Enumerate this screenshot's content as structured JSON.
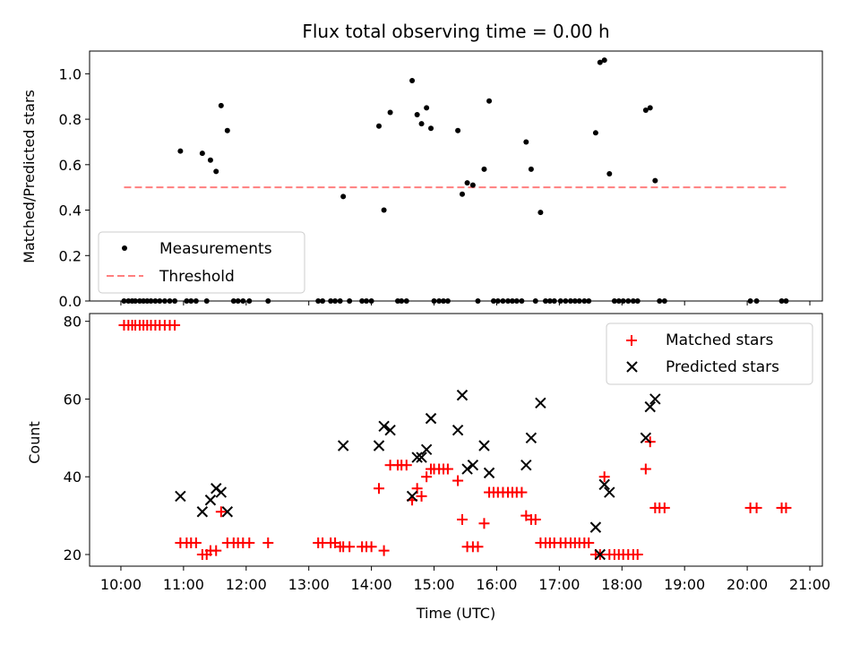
{
  "chart_data": [
    {
      "type": "scatter",
      "title": "Flux total observing time = 0.00 h",
      "xlabel": "",
      "ylabel": "Matched/Predicted stars",
      "ylim": [
        0,
        1.1
      ],
      "xlim": [
        9.5,
        21.2
      ],
      "yticks": [
        "0.0",
        "0.2",
        "0.4",
        "0.6",
        "0.8",
        "1.0"
      ],
      "legend_position": "lower-left",
      "series": [
        {
          "name": "Measurements",
          "color": "#000000",
          "marker": "dot",
          "points": [
            [
              10.05,
              0
            ],
            [
              10.12,
              0
            ],
            [
              10.18,
              0
            ],
            [
              10.23,
              0
            ],
            [
              10.3,
              0
            ],
            [
              10.36,
              0
            ],
            [
              10.42,
              0
            ],
            [
              10.48,
              0
            ],
            [
              10.55,
              0
            ],
            [
              10.62,
              0
            ],
            [
              10.7,
              0
            ],
            [
              10.78,
              0
            ],
            [
              10.86,
              0
            ],
            [
              10.95,
              0.66
            ],
            [
              11.05,
              0
            ],
            [
              11.12,
              0
            ],
            [
              11.2,
              0
            ],
            [
              11.3,
              0.65
            ],
            [
              11.37,
              0
            ],
            [
              11.43,
              0.62
            ],
            [
              11.52,
              0.57
            ],
            [
              11.6,
              0.86
            ],
            [
              11.7,
              0.75
            ],
            [
              11.8,
              0
            ],
            [
              11.87,
              0
            ],
            [
              11.95,
              0
            ],
            [
              12.05,
              0
            ],
            [
              12.35,
              0
            ],
            [
              13.15,
              0
            ],
            [
              13.22,
              0
            ],
            [
              13.35,
              0
            ],
            [
              13.42,
              0
            ],
            [
              13.5,
              0
            ],
            [
              13.55,
              0.46
            ],
            [
              13.65,
              0
            ],
            [
              13.85,
              0
            ],
            [
              13.92,
              0
            ],
            [
              14.0,
              0
            ],
            [
              14.12,
              0.77
            ],
            [
              14.2,
              0.4
            ],
            [
              14.3,
              0.83
            ],
            [
              14.42,
              0
            ],
            [
              14.48,
              0
            ],
            [
              14.56,
              0
            ],
            [
              14.65,
              0.97
            ],
            [
              14.73,
              0.82
            ],
            [
              14.8,
              0.78
            ],
            [
              14.88,
              0.85
            ],
            [
              14.95,
              0.76
            ],
            [
              15.0,
              0
            ],
            [
              15.08,
              0
            ],
            [
              15.15,
              0
            ],
            [
              15.22,
              0
            ],
            [
              15.38,
              0.75
            ],
            [
              15.45,
              0.47
            ],
            [
              15.53,
              0.52
            ],
            [
              15.62,
              0.51
            ],
            [
              15.7,
              0
            ],
            [
              15.8,
              0.58
            ],
            [
              15.88,
              0.88
            ],
            [
              15.95,
              0
            ],
            [
              16.02,
              0
            ],
            [
              16.1,
              0
            ],
            [
              16.18,
              0
            ],
            [
              16.25,
              0
            ],
            [
              16.32,
              0
            ],
            [
              16.4,
              0
            ],
            [
              16.47,
              0.7
            ],
            [
              16.55,
              0.58
            ],
            [
              16.62,
              0
            ],
            [
              16.7,
              0.39
            ],
            [
              16.78,
              0
            ],
            [
              16.85,
              0
            ],
            [
              16.92,
              0
            ],
            [
              17.02,
              0
            ],
            [
              17.1,
              0
            ],
            [
              17.18,
              0
            ],
            [
              17.25,
              0
            ],
            [
              17.32,
              0
            ],
            [
              17.4,
              0
            ],
            [
              17.47,
              0
            ],
            [
              17.58,
              0.74
            ],
            [
              17.65,
              1.05
            ],
            [
              17.72,
              1.06
            ],
            [
              17.8,
              0.56
            ],
            [
              17.88,
              0
            ],
            [
              17.95,
              0
            ],
            [
              18.02,
              0
            ],
            [
              18.1,
              0
            ],
            [
              18.18,
              0
            ],
            [
              18.25,
              0
            ],
            [
              18.38,
              0.84
            ],
            [
              18.45,
              0.85
            ],
            [
              18.53,
              0.53
            ],
            [
              18.6,
              0
            ],
            [
              18.68,
              0
            ],
            [
              20.05,
              0
            ],
            [
              20.15,
              0
            ],
            [
              20.55,
              0
            ],
            [
              20.62,
              0
            ]
          ]
        },
        {
          "name": "Threshold",
          "color": "#ff7f7f",
          "marker": "dashed-line",
          "points": [
            [
              10.05,
              0.5
            ],
            [
              20.62,
              0.5
            ]
          ]
        }
      ]
    },
    {
      "type": "scatter",
      "title": "",
      "xlabel": "Time (UTC)",
      "ylabel": "Count",
      "ylim": [
        17,
        82
      ],
      "xlim": [
        9.5,
        21.2
      ],
      "yticks": [
        "20",
        "40",
        "60",
        "80"
      ],
      "xticks": [
        "10:00",
        "11:00",
        "12:00",
        "13:00",
        "14:00",
        "15:00",
        "16:00",
        "17:00",
        "18:00",
        "19:00",
        "20:00",
        "21:00"
      ],
      "legend_position": "upper-right",
      "series": [
        {
          "name": "Matched stars",
          "color": "#ff0000",
          "marker": "plus",
          "points": [
            [
              10.05,
              79
            ],
            [
              10.12,
              79
            ],
            [
              10.18,
              79
            ],
            [
              10.23,
              79
            ],
            [
              10.3,
              79
            ],
            [
              10.36,
              79
            ],
            [
              10.42,
              79
            ],
            [
              10.48,
              79
            ],
            [
              10.55,
              79
            ],
            [
              10.62,
              79
            ],
            [
              10.7,
              79
            ],
            [
              10.78,
              79
            ],
            [
              10.86,
              79
            ],
            [
              10.95,
              23
            ],
            [
              11.05,
              23
            ],
            [
              11.12,
              23
            ],
            [
              11.2,
              23
            ],
            [
              11.3,
              20
            ],
            [
              11.37,
              20
            ],
            [
              11.43,
              21
            ],
            [
              11.52,
              21
            ],
            [
              11.6,
              31
            ],
            [
              11.7,
              23
            ],
            [
              11.8,
              23
            ],
            [
              11.87,
              23
            ],
            [
              11.95,
              23
            ],
            [
              12.05,
              23
            ],
            [
              12.35,
              23
            ],
            [
              13.15,
              23
            ],
            [
              13.22,
              23
            ],
            [
              13.35,
              23
            ],
            [
              13.42,
              23
            ],
            [
              13.5,
              22
            ],
            [
              13.55,
              22
            ],
            [
              13.65,
              22
            ],
            [
              13.85,
              22
            ],
            [
              13.92,
              22
            ],
            [
              14.0,
              22
            ],
            [
              14.12,
              37
            ],
            [
              14.2,
              21
            ],
            [
              14.3,
              43
            ],
            [
              14.42,
              43
            ],
            [
              14.48,
              43
            ],
            [
              14.56,
              43
            ],
            [
              14.65,
              34
            ],
            [
              14.73,
              37
            ],
            [
              14.8,
              35
            ],
            [
              14.88,
              40
            ],
            [
              14.95,
              42
            ],
            [
              15.0,
              42
            ],
            [
              15.08,
              42
            ],
            [
              15.15,
              42
            ],
            [
              15.22,
              42
            ],
            [
              15.38,
              39
            ],
            [
              15.45,
              29
            ],
            [
              15.53,
              22
            ],
            [
              15.62,
              22
            ],
            [
              15.7,
              22
            ],
            [
              15.8,
              28
            ],
            [
              15.88,
              36
            ],
            [
              15.95,
              36
            ],
            [
              16.02,
              36
            ],
            [
              16.1,
              36
            ],
            [
              16.18,
              36
            ],
            [
              16.25,
              36
            ],
            [
              16.32,
              36
            ],
            [
              16.4,
              36
            ],
            [
              16.47,
              30
            ],
            [
              16.55,
              29
            ],
            [
              16.62,
              29
            ],
            [
              16.7,
              23
            ],
            [
              16.78,
              23
            ],
            [
              16.85,
              23
            ],
            [
              16.92,
              23
            ],
            [
              17.02,
              23
            ],
            [
              17.1,
              23
            ],
            [
              17.18,
              23
            ],
            [
              17.25,
              23
            ],
            [
              17.32,
              23
            ],
            [
              17.4,
              23
            ],
            [
              17.47,
              23
            ],
            [
              17.58,
              20
            ],
            [
              17.65,
              20
            ],
            [
              17.72,
              40
            ],
            [
              17.8,
              20
            ],
            [
              17.88,
              20
            ],
            [
              17.95,
              20
            ],
            [
              18.02,
              20
            ],
            [
              18.1,
              20
            ],
            [
              18.18,
              20
            ],
            [
              18.25,
              20
            ],
            [
              18.38,
              42
            ],
            [
              18.45,
              49
            ],
            [
              18.53,
              32
            ],
            [
              18.6,
              32
            ],
            [
              18.68,
              32
            ],
            [
              20.05,
              32
            ],
            [
              20.15,
              32
            ],
            [
              20.55,
              32
            ],
            [
              20.62,
              32
            ]
          ]
        },
        {
          "name": "Predicted stars",
          "color": "#000000",
          "marker": "cross",
          "points": [
            [
              10.95,
              35
            ],
            [
              11.3,
              31
            ],
            [
              11.43,
              34
            ],
            [
              11.52,
              37
            ],
            [
              11.6,
              36
            ],
            [
              11.7,
              31
            ],
            [
              13.55,
              48
            ],
            [
              14.12,
              48
            ],
            [
              14.2,
              53
            ],
            [
              14.3,
              52
            ],
            [
              14.65,
              35
            ],
            [
              14.73,
              45
            ],
            [
              14.8,
              45
            ],
            [
              14.88,
              47
            ],
            [
              14.95,
              55
            ],
            [
              15.38,
              52
            ],
            [
              15.45,
              61
            ],
            [
              15.53,
              42
            ],
            [
              15.62,
              43
            ],
            [
              15.8,
              48
            ],
            [
              15.88,
              41
            ],
            [
              16.47,
              43
            ],
            [
              16.55,
              50
            ],
            [
              16.7,
              59
            ],
            [
              17.58,
              27
            ],
            [
              17.65,
              20
            ],
            [
              17.72,
              38
            ],
            [
              17.8,
              36
            ],
            [
              18.38,
              50
            ],
            [
              18.45,
              58
            ],
            [
              18.53,
              60
            ]
          ]
        }
      ]
    }
  ]
}
